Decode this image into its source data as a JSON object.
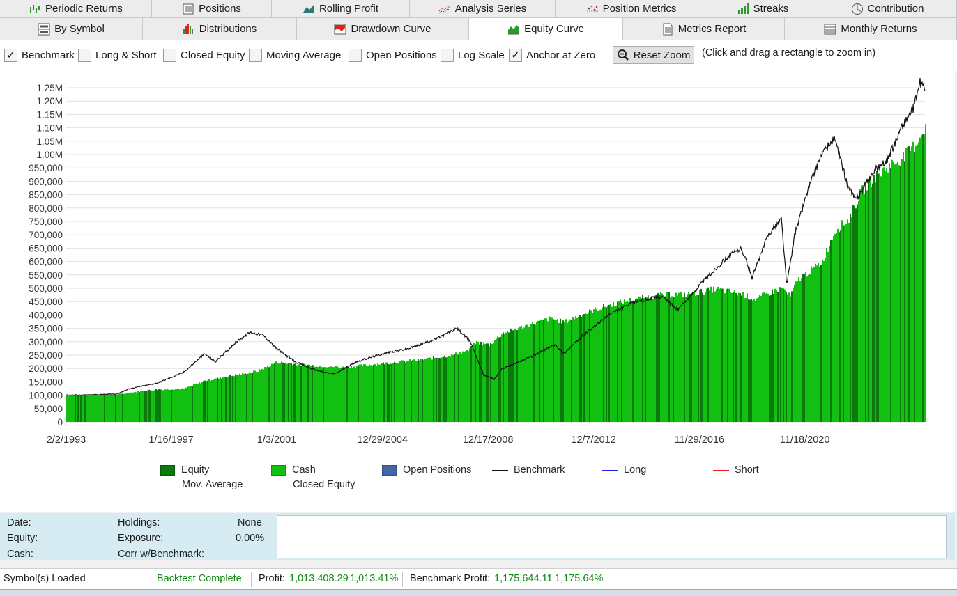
{
  "tabs_row1": [
    {
      "label": "Periodic Returns",
      "icon": "periodic-returns-icon"
    },
    {
      "label": "Positions",
      "icon": "positions-icon"
    },
    {
      "label": "Rolling Profit",
      "icon": "rolling-profit-icon"
    },
    {
      "label": "Analysis Series",
      "icon": "analysis-series-icon"
    },
    {
      "label": "Position Metrics",
      "icon": "position-metrics-icon"
    },
    {
      "label": "Streaks",
      "icon": "streaks-icon"
    },
    {
      "label": "Contribution",
      "icon": "contribution-icon"
    }
  ],
  "tabs_row2": [
    {
      "label": "By Symbol",
      "icon": "by-symbol-icon"
    },
    {
      "label": "Distributions",
      "icon": "distributions-icon"
    },
    {
      "label": "Drawdown Curve",
      "icon": "drawdown-curve-icon"
    },
    {
      "label": "Equity Curve",
      "icon": "equity-curve-icon",
      "active": true
    },
    {
      "label": "Metrics Report",
      "icon": "metrics-report-icon"
    },
    {
      "label": "Monthly Returns",
      "icon": "monthly-returns-icon"
    }
  ],
  "toolbar": {
    "checkboxes": [
      {
        "label": "Benchmark",
        "checked": true
      },
      {
        "label": "Long & Short",
        "checked": false
      },
      {
        "label": "Closed Equity",
        "checked": false
      },
      {
        "label": "Moving Average",
        "checked": false
      },
      {
        "label": "Open Positions",
        "checked": false
      },
      {
        "label": "Log Scale",
        "checked": false
      },
      {
        "label": "Anchor at Zero",
        "checked": true
      }
    ],
    "reset_zoom_label": "Reset Zoom",
    "hint": "(Click and drag a rectangle to zoom in)"
  },
  "chart_data": {
    "type": "area",
    "y_tick_labels": [
      "0",
      "50,000",
      "100,000",
      "150,000",
      "200,000",
      "250,000",
      "300,000",
      "350,000",
      "400,000",
      "450,000",
      "500,000",
      "550,000",
      "600,000",
      "650,000",
      "700,000",
      "750,000",
      "800,000",
      "850,000",
      "900,000",
      "950,000",
      "1.00M",
      "1.05M",
      "1.10M",
      "1.15M",
      "1.20M",
      "1.25M"
    ],
    "ylim": [
      0,
      1250000
    ],
    "x_tick_labels": [
      "2/2/1993",
      "1/16/1997",
      "1/3/2001",
      "12/29/2004",
      "12/17/2008",
      "12/7/2012",
      "11/29/2016",
      "11/18/2020"
    ],
    "xlim": [
      1993.09,
      2025.4
    ],
    "series": [
      {
        "name": "Cash",
        "color": "#12c012",
        "x": [
          1993.09,
          1994.0,
          1995.0,
          1995.9,
          1996.5,
          1997.5,
          1998.3,
          1999.2,
          2000.3,
          2001.0,
          2002.0,
          2002.8,
          2003.5,
          2004.5,
          2005.5,
          2006.5,
          2007.5,
          2008.2,
          2008.5,
          2009.0,
          2009.5,
          2010.5,
          2011.3,
          2011.8,
          2012.5,
          2013.5,
          2014.5,
          2015.5,
          2016.5,
          2017.0,
          2017.5,
          2018.5,
          2019.0,
          2019.3,
          2020.0,
          2020.3,
          2020.6,
          2021.5,
          2022.0,
          2022.5,
          2023.0,
          2023.5,
          2024.0,
          2024.5,
          2025.0,
          2025.4
        ],
        "y": [
          100000,
          102000,
          103000,
          116000,
          122000,
          125000,
          155000,
          172000,
          192000,
          225000,
          215000,
          210000,
          205000,
          215000,
          225000,
          235000,
          250000,
          268000,
          300000,
          290000,
          335000,
          365000,
          390000,
          375000,
          405000,
          440000,
          462000,
          478000,
          480000,
          490000,
          500000,
          480000,
          460000,
          475000,
          505000,
          470000,
          535000,
          600000,
          720000,
          760000,
          870000,
          920000,
          960000,
          990000,
          1040000,
          1110000
        ]
      },
      {
        "name": "Benchmark",
        "color": "#111111",
        "x": [
          1993.09,
          1994.0,
          1995.0,
          1995.5,
          1996.5,
          1997.5,
          1998.3,
          1998.7,
          1999.5,
          2000.0,
          2000.5,
          2001.0,
          2001.7,
          2002.3,
          2002.8,
          2003.2,
          2004.0,
          2005.0,
          2006.0,
          2007.0,
          2007.8,
          2008.3,
          2008.8,
          2009.2,
          2009.5,
          2010.5,
          2011.5,
          2011.8,
          2012.5,
          2013.5,
          2014.5,
          2015.5,
          2016.1,
          2017.0,
          2018.0,
          2018.5,
          2018.9,
          2019.5,
          2020.0,
          2020.2,
          2020.5,
          2021.0,
          2021.5,
          2022.0,
          2022.5,
          2022.8,
          2023.5,
          2024.0,
          2024.5,
          2025.0,
          2025.2,
          2025.4
        ],
        "y": [
          100000,
          101000,
          105000,
          125000,
          145000,
          185000,
          255000,
          225000,
          300000,
          335000,
          325000,
          275000,
          225000,
          200000,
          185000,
          180000,
          225000,
          255000,
          275000,
          310000,
          350000,
          300000,
          175000,
          160000,
          200000,
          240000,
          290000,
          255000,
          320000,
          400000,
          450000,
          470000,
          420000,
          520000,
          620000,
          650000,
          540000,
          700000,
          760000,
          510000,
          700000,
          870000,
          1000000,
          1060000,
          880000,
          830000,
          940000,
          980000,
          1100000,
          1180000,
          1270000,
          1250000
        ]
      }
    ],
    "legend": [
      {
        "label": "Equity",
        "kind": "swatch",
        "color": "#0a7a0a"
      },
      {
        "label": "Cash",
        "kind": "swatch",
        "color": "#12c012"
      },
      {
        "label": "Open Positions",
        "kind": "swatch",
        "color": "#4664a8"
      },
      {
        "label": "Benchmark",
        "kind": "line",
        "color": "#111111"
      },
      {
        "label": "Long",
        "kind": "line",
        "color": "#2222dd"
      },
      {
        "label": "Short",
        "kind": "line",
        "color": "#ee2222"
      },
      {
        "label": "Mov. Average",
        "kind": "line",
        "color": "#2222aa"
      },
      {
        "label": "Closed Equity",
        "kind": "line",
        "color": "#0a7a0a"
      }
    ],
    "grid": true
  },
  "info_panel": {
    "date_label": "Date:",
    "equity_label": "Equity:",
    "cash_label": "Cash:",
    "holdings_label": "Holdings:",
    "holdings_value": "None",
    "exposure_label": "Exposure:",
    "exposure_value": "0.00%",
    "corr_label": "Corr w/Benchmark:"
  },
  "status_bar": {
    "symbols_loaded": "Symbol(s) Loaded",
    "backtest_status": "Backtest Complete",
    "profit_label": "Profit:",
    "profit_value": "1,013,408.29",
    "profit_pct": "1,013.41%",
    "benchmark_label": "Benchmark Profit:",
    "benchmark_value": "1,175,644.11",
    "benchmark_pct": "1,175.64%"
  }
}
